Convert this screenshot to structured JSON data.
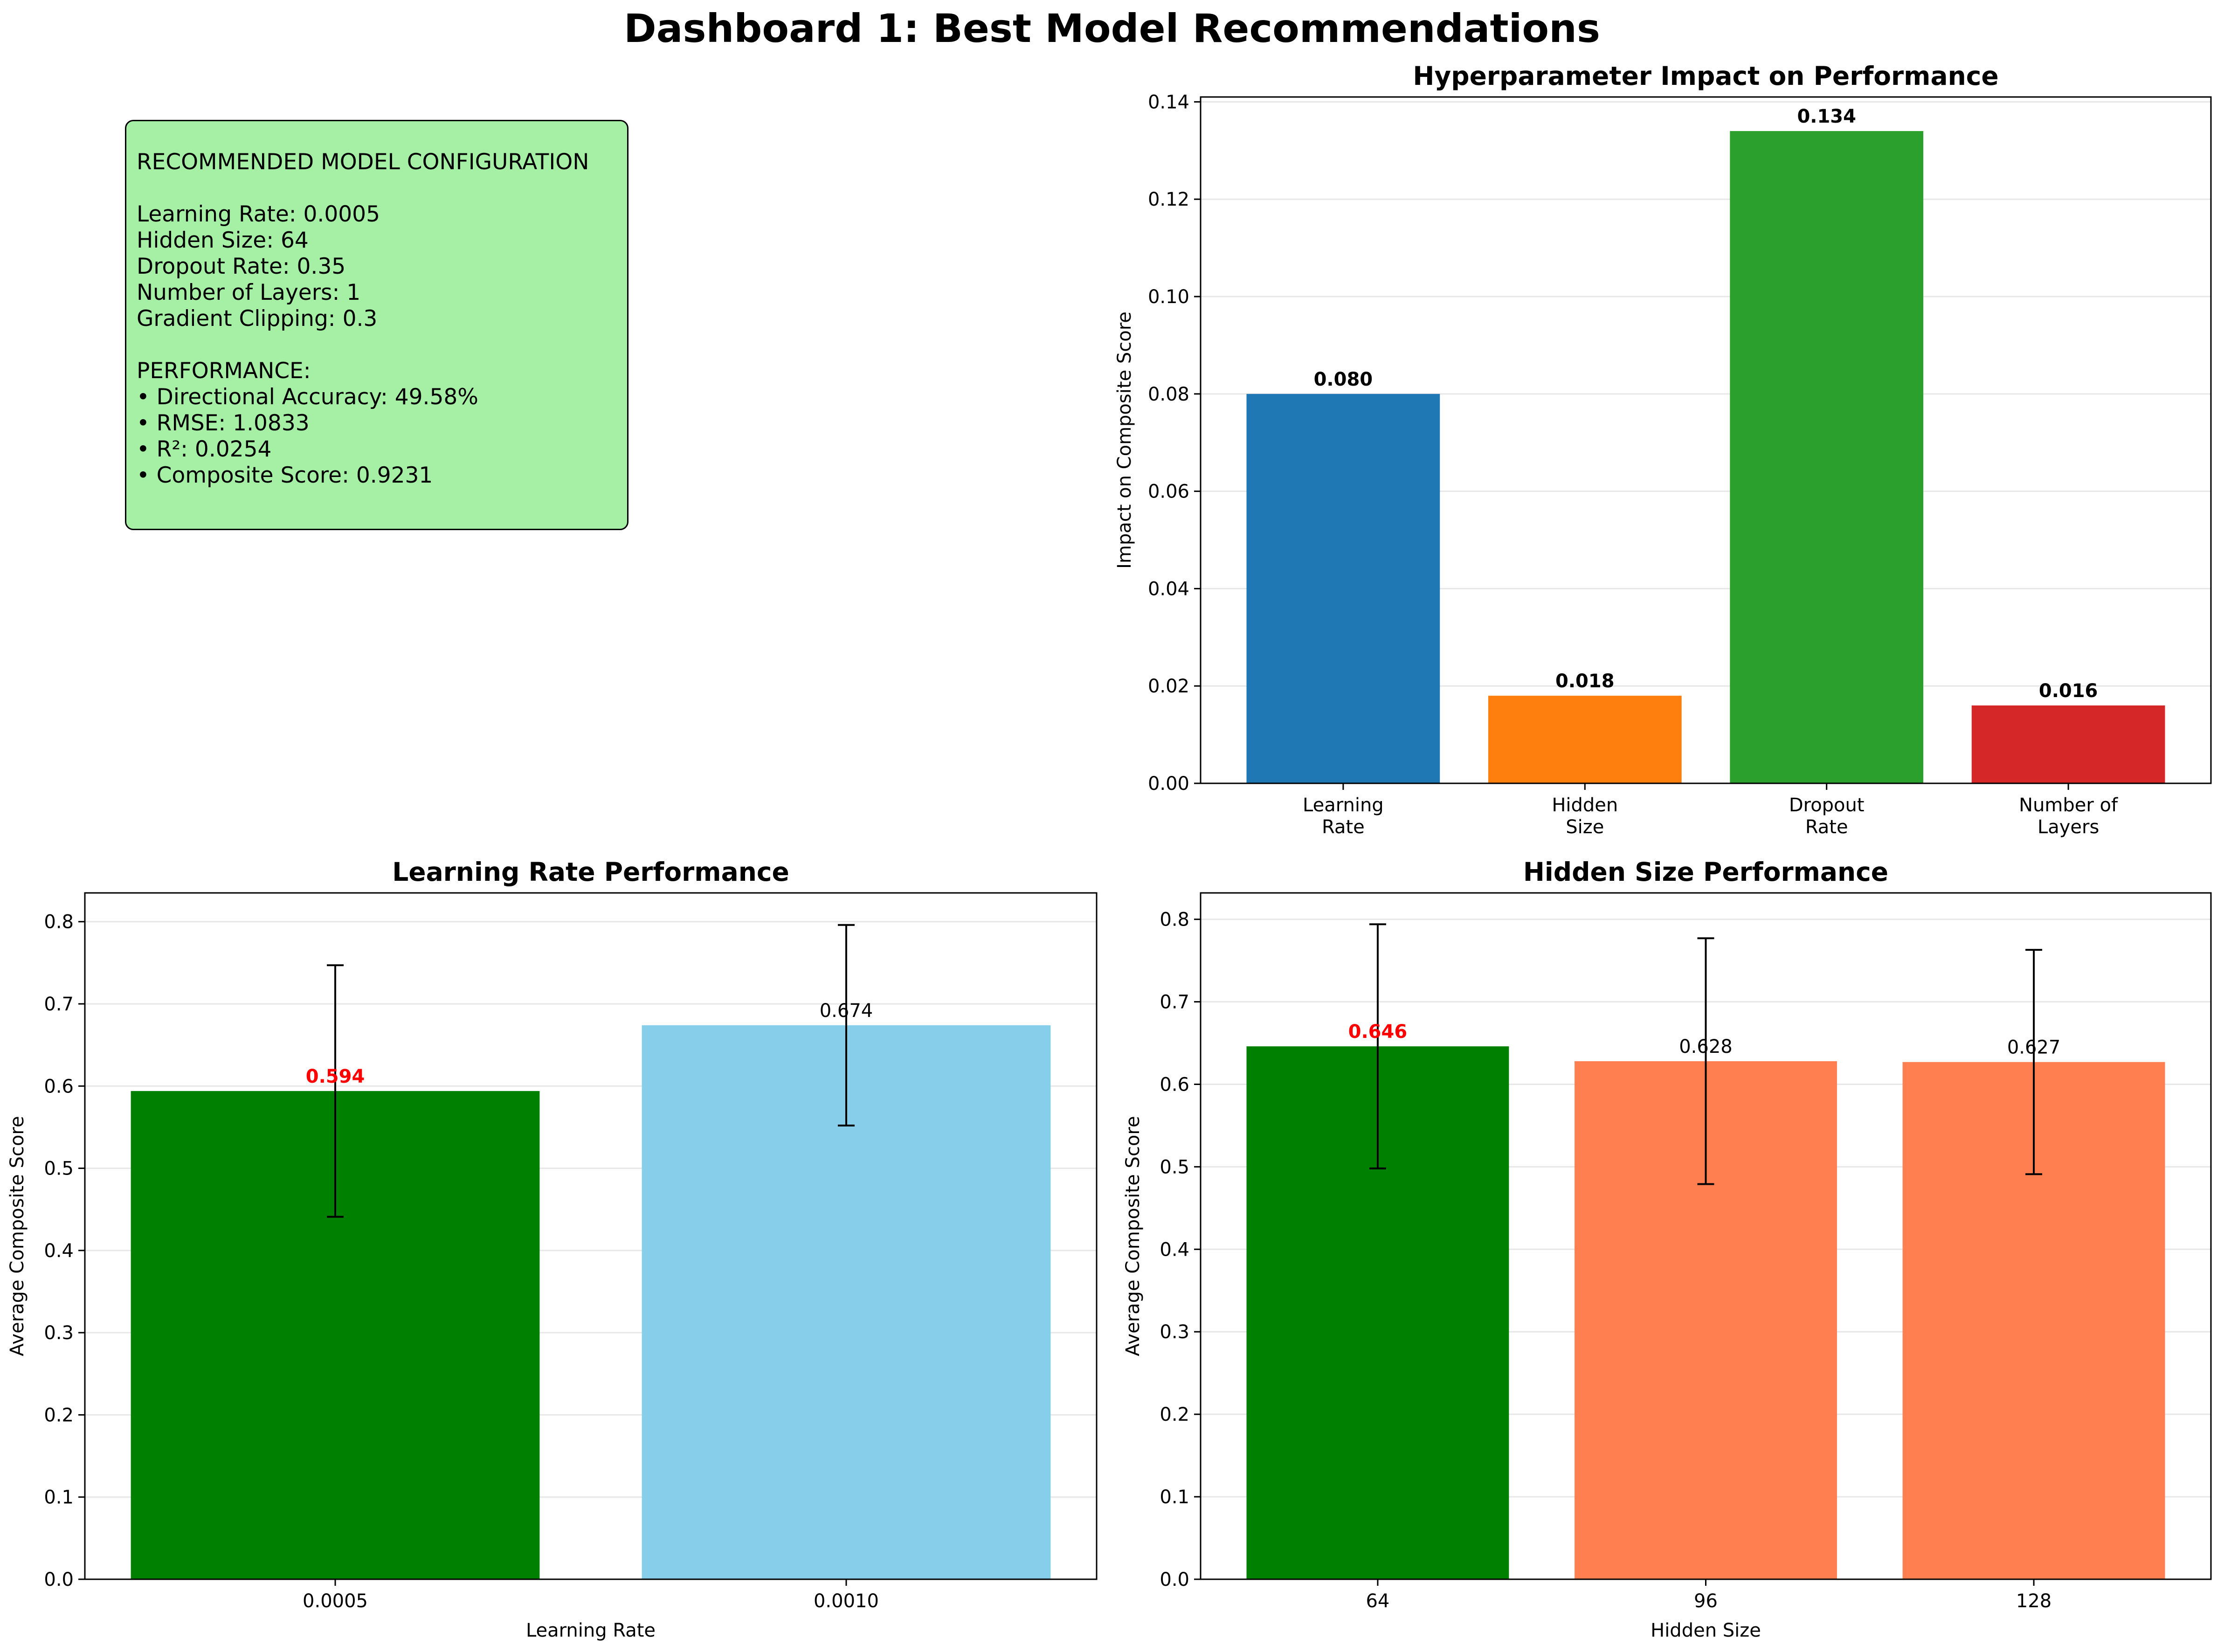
{
  "page": {
    "title": "Dashboard 1: Best Model Recommendations"
  },
  "recommendation": {
    "heading": "RECOMMENDED MODEL CONFIGURATION",
    "config_lines": [
      "Learning Rate: 0.0005",
      "Hidden Size: 64",
      "Dropout Rate: 0.35",
      "Number of Layers: 1",
      "Gradient Clipping: 0.3"
    ],
    "performance_heading": "PERFORMANCE:",
    "performance_lines": [
      "• Directional Accuracy: 49.58%",
      "• RMSE: 1.0833",
      "• R²: 0.0254",
      "• Composite Score: 0.9231"
    ],
    "box_color": "#a6f0a6"
  },
  "chart_data": [
    {
      "id": "impact",
      "type": "bar",
      "title": "Hyperparameter Impact on Performance",
      "xlabel": "",
      "ylabel": "Impact on Composite Score",
      "categories": [
        "Learning\nRate",
        "Hidden\nSize",
        "Dropout\nRate",
        "Number of\nLayers"
      ],
      "values": [
        0.08,
        0.018,
        0.134,
        0.016
      ],
      "value_labels": [
        "0.080",
        "0.018",
        "0.134",
        "0.016"
      ],
      "colors": [
        "#1f77b4",
        "#ff7f0e",
        "#2ca02c",
        "#d62728"
      ],
      "ylim": [
        0,
        0.141
      ],
      "yticks": [
        0.0,
        0.02,
        0.04,
        0.06,
        0.08,
        0.1,
        0.12,
        0.14
      ],
      "ytick_labels": [
        "0.00",
        "0.02",
        "0.04",
        "0.06",
        "0.08",
        "0.10",
        "0.12",
        "0.14"
      ],
      "grid": "y",
      "legend": "none"
    },
    {
      "id": "lr",
      "type": "bar",
      "title": "Learning Rate Performance",
      "xlabel": "Learning Rate",
      "ylabel": "Average Composite Score",
      "categories": [
        "0.0005",
        "0.0010"
      ],
      "values": [
        0.594,
        0.674
      ],
      "errors": [
        0.153,
        0.122
      ],
      "value_labels": [
        "0.594",
        "0.674"
      ],
      "best_index": 0,
      "colors": [
        "#008000",
        "#87ceeb"
      ],
      "ylim": [
        0,
        0.835
      ],
      "yticks": [
        0.0,
        0.1,
        0.2,
        0.3,
        0.4,
        0.5,
        0.6,
        0.7,
        0.8
      ],
      "ytick_labels": [
        "0.0",
        "0.1",
        "0.2",
        "0.3",
        "0.4",
        "0.5",
        "0.6",
        "0.7",
        "0.8"
      ],
      "grid": "y",
      "legend": "none"
    },
    {
      "id": "hs",
      "type": "bar",
      "title": "Hidden Size Performance",
      "xlabel": "Hidden Size",
      "ylabel": "Average Composite Score",
      "categories": [
        "64",
        "96",
        "128"
      ],
      "values": [
        0.646,
        0.628,
        0.627
      ],
      "errors": [
        0.148,
        0.149,
        0.136
      ],
      "value_labels": [
        "0.646",
        "0.628",
        "0.627"
      ],
      "best_index": 0,
      "colors": [
        "#008000",
        "#ff7f50",
        "#ff7f50"
      ],
      "ylim": [
        0,
        0.832
      ],
      "yticks": [
        0.0,
        0.1,
        0.2,
        0.3,
        0.4,
        0.5,
        0.6,
        0.7,
        0.8
      ],
      "ytick_labels": [
        "0.0",
        "0.1",
        "0.2",
        "0.3",
        "0.4",
        "0.5",
        "0.6",
        "0.7",
        "0.8"
      ],
      "grid": "y",
      "legend": "none"
    }
  ]
}
